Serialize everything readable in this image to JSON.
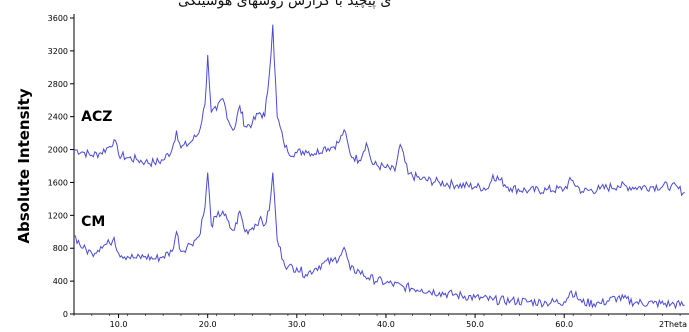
{
  "header_text": "ى ﭘﻴﭽﻴﺪ ﺑﺎ ﮔﺰﺍﺭﺵ ﺭﻭﺷﻬﺎﻯ ﻫﻮﺷﻴﻨﮕﻰ",
  "chart_data": {
    "type": "line",
    "title": "",
    "xlabel": "2Theta",
    "ylabel": "Absolute Intensity",
    "xlim": [
      5,
      74
    ],
    "ylim": [
      0,
      3600
    ],
    "x_ticks": [
      10,
      20,
      30,
      40,
      50,
      60
    ],
    "x_tick_labels": [
      "10.0",
      "20.0",
      "30.0",
      "40.0",
      "50.0",
      "60.0"
    ],
    "y_ticks": [
      0,
      400,
      800,
      1200,
      1600,
      2000,
      2400,
      2800,
      3200,
      3600
    ],
    "y_tick_labels": [
      "0",
      "400",
      "800",
      "1200",
      "1600",
      "2000",
      "2400",
      "2800",
      "3200",
      "3600"
    ],
    "grid": false,
    "line_color": "#4b4bd6",
    "series": [
      {
        "name": "ACZ",
        "x": [
          5,
          6,
          7,
          8,
          9,
          9.5,
          10,
          11,
          12,
          13,
          14,
          15,
          16,
          16.5,
          17,
          18,
          19,
          19.7,
          20.0,
          20.4,
          21,
          21.7,
          22.5,
          23,
          23.6,
          24.2,
          25,
          25.8,
          26.4,
          26.9,
          27.3,
          27.8,
          28.5,
          29,
          30,
          31,
          32,
          33,
          34,
          34.8,
          35.3,
          36,
          37,
          37.8,
          38.5,
          40,
          41,
          41.6,
          42.5,
          44,
          46,
          48,
          50,
          51.5,
          52,
          54,
          56,
          58,
          60,
          60.8,
          62,
          64,
          66,
          68,
          70,
          72,
          73.5
        ],
        "values": [
          2000,
          1970,
          1930,
          1960,
          2040,
          2120,
          1940,
          1900,
          1880,
          1850,
          1840,
          1870,
          2000,
          2230,
          2020,
          2080,
          2200,
          2550,
          3150,
          2450,
          2480,
          2620,
          2300,
          2250,
          2530,
          2280,
          2320,
          2450,
          2400,
          2900,
          3520,
          2400,
          2100,
          1970,
          1960,
          1990,
          1950,
          2020,
          2030,
          2100,
          2240,
          1940,
          1870,
          2080,
          1820,
          1780,
          1740,
          2060,
          1700,
          1640,
          1600,
          1570,
          1550,
          1530,
          1690,
          1530,
          1500,
          1510,
          1520,
          1630,
          1490,
          1520,
          1560,
          1540,
          1550,
          1560,
          1480
        ]
      },
      {
        "name": "CM",
        "x": [
          5,
          6,
          7,
          8,
          9,
          9.5,
          10,
          11,
          12,
          13,
          14,
          15,
          16,
          16.5,
          17,
          18,
          19,
          19.7,
          20.0,
          20.4,
          21,
          21.7,
          22.5,
          23,
          23.6,
          24.2,
          25,
          25.8,
          26.4,
          26.9,
          27.3,
          27.8,
          28.5,
          29,
          30,
          31,
          32,
          33,
          34,
          34.8,
          35.3,
          36,
          37,
          38,
          40,
          42,
          44,
          46,
          48,
          50,
          52,
          54,
          56,
          58,
          60,
          60.8,
          62,
          64,
          66,
          68,
          70,
          72,
          73.5
        ],
        "values": [
          960,
          800,
          740,
          820,
          860,
          930,
          740,
          700,
          680,
          700,
          670,
          700,
          760,
          1000,
          760,
          850,
          940,
          1300,
          1720,
          1080,
          1180,
          1250,
          1050,
          1020,
          1250,
          1000,
          1050,
          1150,
          1080,
          1260,
          1720,
          900,
          650,
          570,
          560,
          480,
          550,
          620,
          640,
          700,
          810,
          540,
          520,
          440,
          380,
          330,
          300,
          260,
          230,
          200,
          170,
          160,
          150,
          140,
          150,
          280,
          140,
          130,
          200,
          140,
          130,
          120,
          110
        ]
      }
    ]
  }
}
